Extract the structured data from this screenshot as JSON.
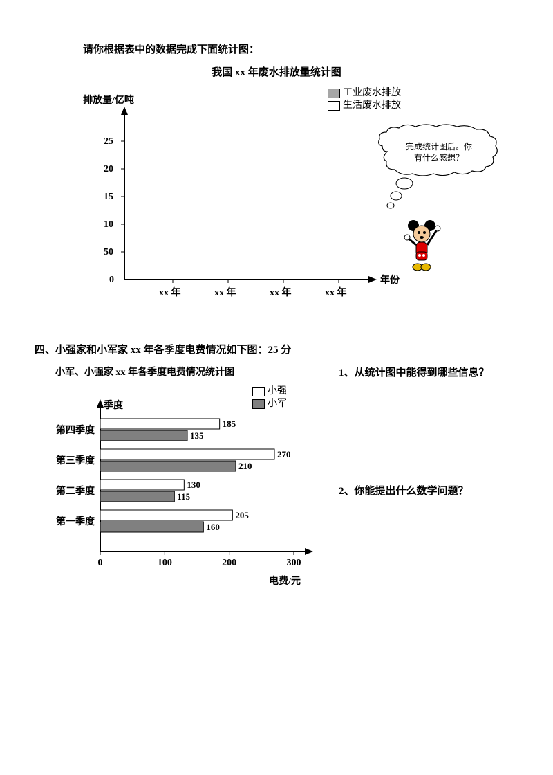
{
  "intro_text": "请你根据表中的数据完成下面统计图：",
  "chart1": {
    "title": "我国 xx 年废水排放量统计图",
    "y_label": "排放量/亿吨",
    "x_label": "年份",
    "y_ticks": [
      "25",
      "20",
      "15",
      "10",
      "50",
      "0"
    ],
    "x_ticks": [
      "xx 年",
      "xx 年",
      "xx 年",
      "xx 年"
    ],
    "legend": {
      "industrial_fill": "#a6a6a6",
      "industrial_label": "工业废水排放",
      "domestic_fill": "#ffffff",
      "domestic_label": "生活废水排放"
    },
    "bubble_text_1": "完成统计图后。你",
    "bubble_text_2": "有什么感想？",
    "bubble_fontsize": 13
  },
  "section4_title": "四、小强家和小军家 xx 年各季度电费情况如下图：25 分",
  "chart2": {
    "title": "小军、小强家 xx 年各季度电费情况统计图",
    "y_label": "季度",
    "x_label": "电费/元",
    "x_ticks": [
      "0",
      "100",
      "200",
      "300"
    ],
    "legend": {
      "xq_fill": "#ffffff",
      "xq_label": "小强",
      "xj_fill": "#808080",
      "xj_label": "小军"
    },
    "quarters": [
      {
        "label": "第四季度",
        "xq": 185,
        "xj": 135
      },
      {
        "label": "第三季度",
        "xq": 270,
        "xj": 210
      },
      {
        "label": "第二季度",
        "xq": 130,
        "xj": 115
      },
      {
        "label": "第一季度",
        "xq": 205,
        "xj": 160
      }
    ],
    "x_max": 300,
    "bar_stroke": "#000000"
  },
  "q1": "1、从统计图中能得到哪些信息？",
  "q2": "2、你能提出什么数学问题？"
}
